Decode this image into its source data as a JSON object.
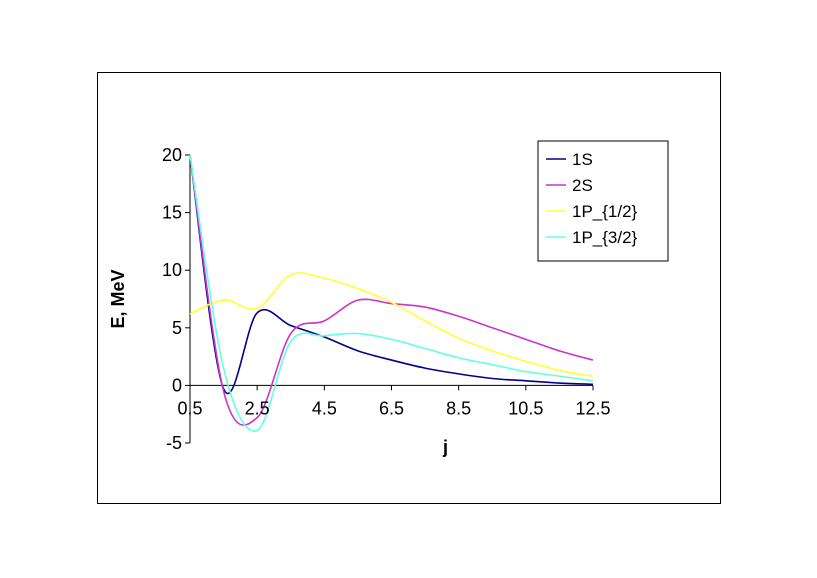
{
  "chart_data": {
    "type": "line",
    "xlabel": "j",
    "ylabel": "E, MeV",
    "xlim": [
      0.5,
      12.5
    ],
    "ylim": [
      -5,
      20
    ],
    "x_ticks": [
      "0.5",
      "2.5",
      "4.5",
      "6.5",
      "8.5",
      "10.5",
      "12.5"
    ],
    "y_ticks": [
      "20",
      "15",
      "10",
      "5",
      "0",
      "-5"
    ],
    "x_tick_values": [
      0.5,
      2.5,
      4.5,
      6.5,
      8.5,
      10.5,
      12.5
    ],
    "y_tick_values": [
      20,
      15,
      10,
      5,
      0,
      -5
    ],
    "grid": false,
    "legend_position": "top-right",
    "series": [
      {
        "name": "1S",
        "color": "#00008b",
        "x": [
          0.5,
          1.5,
          2.5,
          3.5,
          4.5,
          5.5,
          6.5,
          7.5,
          8.5,
          9.5,
          10.5,
          11.5,
          12.5
        ],
        "y": [
          20,
          -0.3,
          6.3,
          5.2,
          4.2,
          3.0,
          2.2,
          1.5,
          1.0,
          0.6,
          0.4,
          0.2,
          0.1
        ]
      },
      {
        "name": "2S",
        "color": "#cc33cc",
        "x": [
          0.5,
          1.5,
          2.5,
          3.5,
          4.5,
          5.5,
          6.5,
          7.5,
          8.5,
          9.5,
          10.5,
          11.5,
          12.5
        ],
        "y": [
          20,
          -0.5,
          -2.8,
          4.5,
          5.6,
          7.4,
          7.1,
          6.8,
          6.0,
          5.0,
          4.0,
          3.0,
          2.2
        ]
      },
      {
        "name": "1P_{1/2}",
        "color": "#ffff33",
        "x": [
          0.5,
          1.5,
          2.5,
          3.5,
          4.5,
          5.5,
          6.5,
          7.5,
          8.5,
          9.5,
          10.5,
          11.5,
          12.5
        ],
        "y": [
          6.2,
          7.4,
          6.7,
          9.6,
          9.3,
          8.4,
          7.2,
          5.6,
          4.1,
          3.0,
          2.1,
          1.3,
          0.8
        ]
      },
      {
        "name": "1P_{3/2}",
        "color": "#66ffdd",
        "x": [
          0.5,
          1.5,
          2.5,
          3.5,
          4.5,
          5.5,
          6.5,
          7.5,
          8.5,
          9.5,
          10.5,
          11.5,
          12.5
        ],
        "y": [
          20,
          1.5,
          -3.9,
          3.8,
          4.3,
          4.5,
          4.0,
          3.2,
          2.4,
          1.8,
          1.2,
          0.8,
          0.4
        ]
      }
    ]
  }
}
